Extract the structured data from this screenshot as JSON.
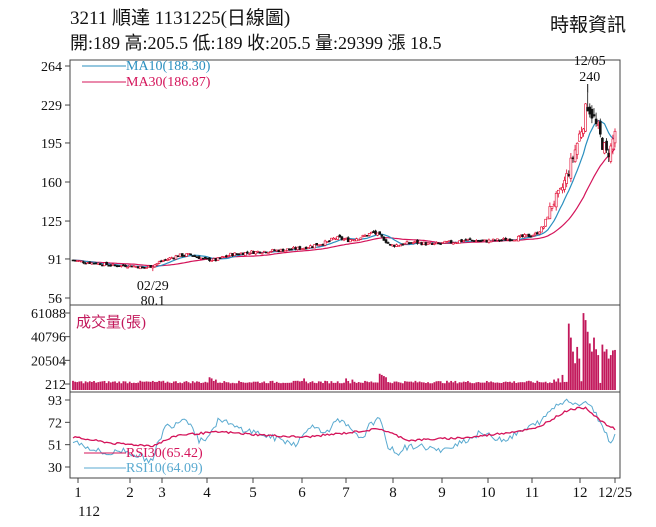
{
  "header": {
    "title": "3211  順達 1131225(日線圖)",
    "ohlc": "開:189 高:205.5 低:189 收:205.5 量:29399 漲 18.5",
    "brand": "時報資訊"
  },
  "colors": {
    "up": "#e0002a",
    "down": "#111111",
    "ma10": "#2a8fbf",
    "ma30": "#d4145a",
    "rsi30": "#d4145a",
    "rsi10": "#5aaad0",
    "volume": "#c2185b",
    "axis": "#444444"
  },
  "chart_data": [
    {
      "type": "candlestick",
      "yticks": [
        "264",
        "229",
        "195",
        "160",
        "125",
        "91",
        "56"
      ],
      "ylim": [
        56,
        264
      ],
      "legend": [
        {
          "name": "MA10",
          "label": "MA10(188.30)",
          "color": "#2a8fbf"
        },
        {
          "name": "MA30",
          "label": "MA30(186.87)",
          "color": "#d4145a"
        }
      ],
      "annotations": [
        {
          "date": "12/05",
          "value": "240",
          "label": "12/05\n240"
        },
        {
          "date": "02/29",
          "value": "80.1",
          "label": "02/29\n80.1"
        }
      ],
      "month_ticks": [
        "1",
        "2",
        "3",
        "4",
        "5",
        "6",
        "7",
        "8",
        "9",
        "10",
        "11",
        "12",
        "12/25"
      ],
      "year_label": "112",
      "close_anchors": [
        [
          0,
          90
        ],
        [
          6,
          88
        ],
        [
          12,
          87
        ],
        [
          20,
          85
        ],
        [
          28,
          85
        ],
        [
          34,
          83
        ],
        [
          38,
          85
        ],
        [
          42,
          89
        ],
        [
          50,
          94
        ],
        [
          56,
          95
        ],
        [
          62,
          91
        ],
        [
          68,
          90
        ],
        [
          75,
          95
        ],
        [
          84,
          97
        ],
        [
          92,
          98
        ],
        [
          100,
          99
        ],
        [
          110,
          101
        ],
        [
          116,
          104
        ],
        [
          121,
          106
        ],
        [
          125,
          110
        ],
        [
          131,
          108
        ],
        [
          138,
          111
        ],
        [
          143,
          115
        ],
        [
          148,
          109
        ],
        [
          151,
          103
        ],
        [
          156,
          104
        ],
        [
          163,
          106
        ],
        [
          171,
          104
        ],
        [
          180,
          106
        ],
        [
          188,
          108
        ],
        [
          196,
          107
        ],
        [
          204,
          108
        ],
        [
          212,
          110
        ],
        [
          220,
          113
        ],
        [
          224,
          120
        ],
        [
          228,
          140
        ],
        [
          232,
          150
        ],
        [
          236,
          170
        ],
        [
          240,
          195
        ],
        [
          243,
          215
        ],
        [
          245,
          230
        ],
        [
          247,
          222
        ],
        [
          249,
          210
        ],
        [
          252,
          195
        ],
        [
          254,
          185
        ],
        [
          256,
          190
        ],
        [
          258,
          205
        ]
      ],
      "last_close": 205.5,
      "high_peak": 240,
      "low_trough": 80.1,
      "ma10_last": 188.3,
      "ma30_last": 186.87
    },
    {
      "type": "bar",
      "title": "成交量(張)",
      "yticks": [
        "61088",
        "40796",
        "20504",
        "212"
      ],
      "ylim": [
        212,
        61088
      ],
      "spikes": [
        [
          65,
          6
        ],
        [
          66,
          5
        ],
        [
          68,
          4
        ],
        [
          110,
          5
        ],
        [
          130,
          5
        ],
        [
          133,
          4
        ],
        [
          146,
          9
        ],
        [
          147,
          8
        ],
        [
          148,
          7
        ],
        [
          149,
          6
        ],
        [
          229,
          4
        ],
        [
          231,
          5
        ],
        [
          233,
          8
        ],
        [
          236,
          52
        ],
        [
          237,
          40
        ],
        [
          238,
          28
        ],
        [
          239,
          18
        ],
        [
          240,
          32
        ],
        [
          241,
          22
        ],
        [
          243,
          61
        ],
        [
          244,
          55
        ],
        [
          245,
          45
        ],
        [
          246,
          35
        ],
        [
          247,
          28
        ],
        [
          248,
          40
        ],
        [
          249,
          30
        ],
        [
          250,
          25
        ],
        [
          252,
          34
        ],
        [
          253,
          28
        ],
        [
          254,
          30
        ],
        [
          255,
          22
        ],
        [
          256,
          25
        ],
        [
          257,
          29
        ],
        [
          258,
          29.4
        ]
      ],
      "last": 29399
    },
    {
      "type": "line",
      "yticks": [
        "93",
        "72",
        "51",
        "30"
      ],
      "ylim": [
        30,
        93
      ],
      "legend": [
        {
          "name": "RSI30",
          "label": "RSI30(65.42)",
          "color": "#d4145a"
        },
        {
          "name": "RSI10",
          "label": "RSI10(64.09)",
          "color": "#5aaad0"
        }
      ],
      "rsi10_anchors": [
        [
          0,
          55
        ],
        [
          8,
          48
        ],
        [
          16,
          42
        ],
        [
          24,
          46
        ],
        [
          32,
          40
        ],
        [
          38,
          35
        ],
        [
          40,
          50
        ],
        [
          44,
          68
        ],
        [
          48,
          70
        ],
        [
          52,
          76
        ],
        [
          56,
          72
        ],
        [
          60,
          55
        ],
        [
          64,
          58
        ],
        [
          70,
          76
        ],
        [
          76,
          68
        ],
        [
          82,
          65
        ],
        [
          88,
          62
        ],
        [
          94,
          58
        ],
        [
          100,
          55
        ],
        [
          106,
          52
        ],
        [
          110,
          60
        ],
        [
          114,
          72
        ],
        [
          118,
          62
        ],
        [
          122,
          66
        ],
        [
          126,
          73
        ],
        [
          130,
          70
        ],
        [
          134,
          60
        ],
        [
          138,
          58
        ],
        [
          142,
          72
        ],
        [
          146,
          74
        ],
        [
          150,
          50
        ],
        [
          154,
          42
        ],
        [
          158,
          48
        ],
        [
          164,
          50
        ],
        [
          170,
          48
        ],
        [
          176,
          44
        ],
        [
          182,
          52
        ],
        [
          188,
          56
        ],
        [
          194,
          62
        ],
        [
          200,
          58
        ],
        [
          206,
          56
        ],
        [
          212,
          62
        ],
        [
          218,
          68
        ],
        [
          224,
          75
        ],
        [
          228,
          85
        ],
        [
          232,
          90
        ],
        [
          236,
          94
        ],
        [
          240,
          88
        ],
        [
          244,
          92
        ],
        [
          248,
          82
        ],
        [
          252,
          70
        ],
        [
          254,
          60
        ],
        [
          256,
          52
        ],
        [
          258,
          64
        ]
      ],
      "rsi30_anchors": [
        [
          0,
          58
        ],
        [
          20,
          52
        ],
        [
          38,
          50
        ],
        [
          50,
          60
        ],
        [
          70,
          63
        ],
        [
          90,
          60
        ],
        [
          110,
          58
        ],
        [
          130,
          62
        ],
        [
          146,
          66
        ],
        [
          160,
          55
        ],
        [
          190,
          58
        ],
        [
          220,
          66
        ],
        [
          236,
          84
        ],
        [
          244,
          86
        ],
        [
          252,
          72
        ],
        [
          258,
          65.4
        ]
      ]
    }
  ]
}
